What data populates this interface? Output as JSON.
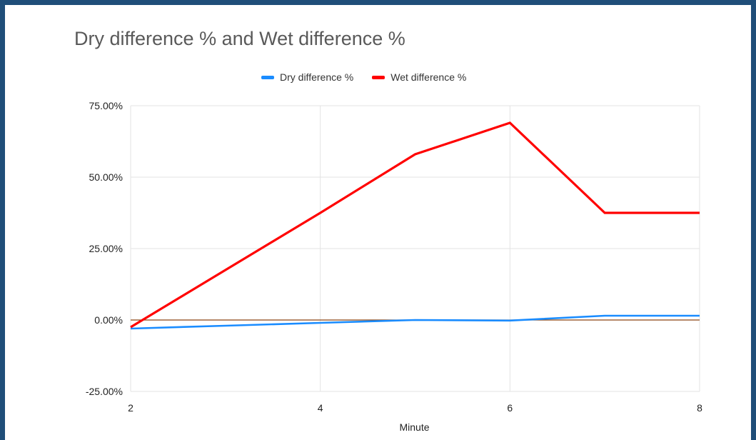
{
  "chart_data": {
    "type": "line",
    "title": "Dry difference % and Wet difference %",
    "xlabel": "Minute",
    "ylabel": "",
    "x": [
      2,
      3,
      4,
      5,
      6,
      7,
      8
    ],
    "xticks": [
      2,
      4,
      6,
      8
    ],
    "xlim": [
      2,
      8
    ],
    "ylim": [
      -0.25,
      0.75
    ],
    "yticks": [
      -0.25,
      0,
      0.25,
      0.5,
      0.75
    ],
    "ytick_labels": [
      "-25.00%",
      "0.00%",
      "25.00%",
      "50.00%",
      "75.00%"
    ],
    "grid": true,
    "legend": "top",
    "series": [
      {
        "name": "Dry difference %",
        "color": "#1a8cff",
        "values": [
          -0.03,
          -0.02,
          -0.01,
          0.0,
          -0.002,
          0.015,
          0.015
        ]
      },
      {
        "name": "Wet difference %",
        "color": "#ff0000",
        "values": [
          -0.025,
          0.175,
          0.375,
          0.58,
          0.69,
          0.375,
          0.375
        ]
      }
    ],
    "zero_line_color": "#8b4513"
  }
}
